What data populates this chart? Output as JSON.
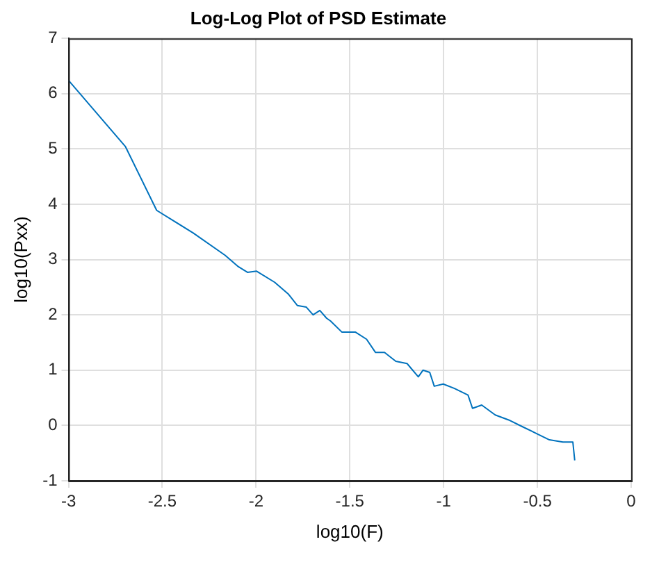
{
  "chart_data": {
    "type": "line",
    "title": "Log-Log Plot of PSD Estimate",
    "xlabel": "log10(F)",
    "ylabel": "log10(Pxx)",
    "x": [
      -3.0,
      -2.696,
      -2.53,
      -2.335,
      -2.166,
      -2.094,
      -2.046,
      -1.997,
      -1.901,
      -1.829,
      -1.78,
      -1.732,
      -1.696,
      -1.66,
      -1.624,
      -1.603,
      -1.543,
      -1.471,
      -1.411,
      -1.363,
      -1.315,
      -1.255,
      -1.195,
      -1.135,
      -1.11,
      -1.074,
      -1.05,
      -1.002,
      -0.942,
      -0.87,
      -0.846,
      -0.797,
      -0.725,
      -0.653,
      -0.581,
      -0.508,
      -0.436,
      -0.364,
      -0.311,
      -0.301
    ],
    "series": [
      {
        "color": "#0072bd",
        "values": [
          6.24,
          5.04,
          3.89,
          3.48,
          3.08,
          2.87,
          2.77,
          2.79,
          2.59,
          2.38,
          2.17,
          2.14,
          2.0,
          2.08,
          1.94,
          1.89,
          1.69,
          1.69,
          1.56,
          1.32,
          1.32,
          1.16,
          1.12,
          0.88,
          1.0,
          0.96,
          0.71,
          0.75,
          0.67,
          0.55,
          0.31,
          0.37,
          0.19,
          0.1,
          -0.02,
          -0.14,
          -0.26,
          -0.3,
          -0.3,
          -0.63
        ]
      }
    ],
    "xlim": [
      -3,
      0
    ],
    "xticks": [
      -3,
      -2.5,
      -2,
      -1.5,
      -1,
      -0.5,
      0
    ],
    "ylim": [
      -1,
      7
    ],
    "yticks": [
      -1,
      0,
      1,
      2,
      3,
      4,
      5,
      6,
      7
    ],
    "grid": true,
    "legend": false,
    "marker": "none",
    "line_style": "solid"
  }
}
